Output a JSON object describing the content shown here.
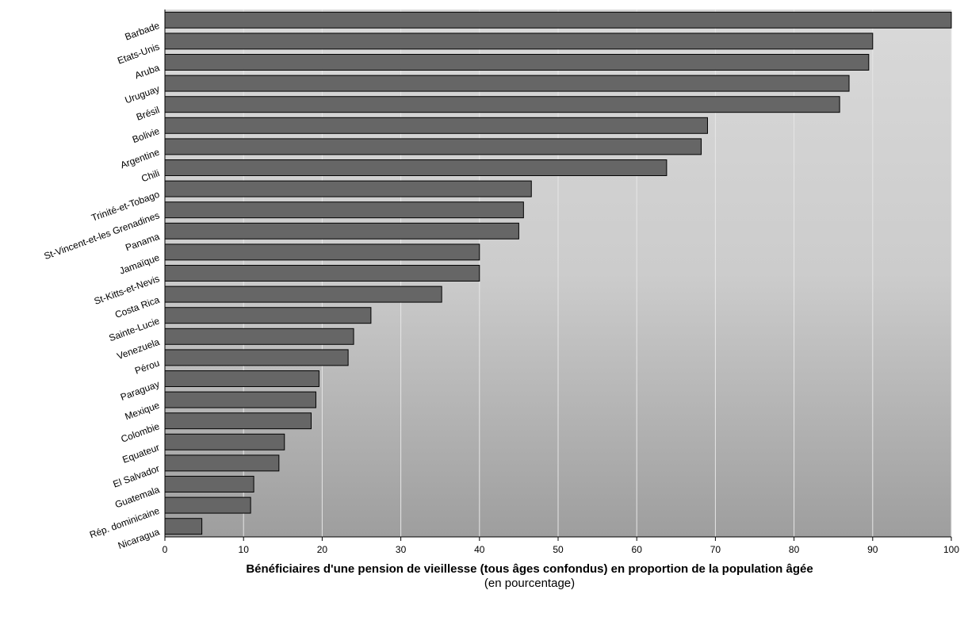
{
  "chart_data": {
    "type": "bar",
    "orientation": "horizontal",
    "categories": [
      "Barbade",
      "Etats-Unis",
      "Aruba",
      "Uruguay",
      "Brésil",
      "Bolivie",
      "Argentine",
      "Chili",
      "Trinité-et-Tobago",
      "St-Vincent-et-les Grenadines",
      "Panama",
      "Jamaïque",
      "St-Kitts-et-Nevis",
      "Costa Rica",
      "Sainte-Lucie",
      "Venezuela",
      "Pérou",
      "Paraguay",
      "Mexique",
      "Colombie",
      "Equateur",
      "El Salvador",
      "Guatemala",
      "Rép. dominicaine",
      "Nicaragua"
    ],
    "values": [
      100,
      90,
      89.5,
      87,
      85.8,
      69,
      68.2,
      63.8,
      46.6,
      45.6,
      45,
      40,
      40,
      35.2,
      26.2,
      24,
      23.3,
      19.6,
      19.2,
      18.6,
      15.2,
      14.5,
      11.3,
      10.9,
      4.7
    ],
    "xlim": [
      0,
      100
    ],
    "xticks": [
      0,
      10,
      20,
      30,
      40,
      50,
      60,
      70,
      80,
      90,
      100
    ],
    "xlabel": "Bénéficiaires d'une pension de vieillesse (tous âges confondus) en proportion de la population âgée",
    "xlabel_sub": "(en  pourcentage)",
    "grid": true,
    "bar_color": "#666666",
    "bar_border": "#000000",
    "background_top": "#d9d9d9",
    "background_bottom": "#9e9e9e"
  }
}
